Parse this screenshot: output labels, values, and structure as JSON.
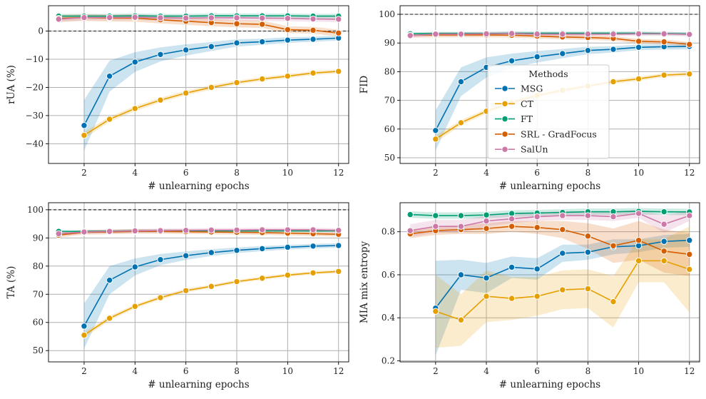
{
  "colors": {
    "MSG": "#0072b2",
    "CT": "#e69f00",
    "FT": "#009e73",
    "SRL - GradFocus": "#d55e00",
    "SalUn": "#cc79a7"
  },
  "legend": {
    "title": "Methods",
    "entries": [
      "MSG",
      "CT",
      "FT",
      "SRL - GradFocus",
      "SalUn"
    ],
    "placement": "center (top-right panel)"
  },
  "chart_data": [
    {
      "type": "line",
      "xlabel": "# unlearning epochs",
      "ylabel": "rUA (%)",
      "xlim": [
        0.6,
        12.4
      ],
      "ylim": [
        -47,
        9
      ],
      "xticks": [
        2,
        4,
        6,
        8,
        10,
        12
      ],
      "yticks": [
        -40,
        -30,
        -20,
        -10,
        0
      ],
      "reference_line": 0,
      "grid": true,
      "series": [
        {
          "name": "MSG",
          "x": [
            2,
            3,
            4,
            5,
            6,
            7,
            8,
            9,
            10,
            11,
            12
          ],
          "values": [
            -33.5,
            -16,
            -11,
            -8.3,
            -6.7,
            -5.5,
            -4.2,
            -3.8,
            -3.2,
            -2.9,
            -2.5
          ],
          "band": [
            9,
            5.5,
            3.5,
            2.5,
            2,
            1.6,
            1.3,
            1.1,
            1,
            0.9,
            0.9
          ]
        },
        {
          "name": "CT",
          "x": [
            2,
            3,
            4,
            5,
            6,
            7,
            8,
            9,
            10,
            11,
            12
          ],
          "values": [
            -37,
            -31.3,
            -27.5,
            -24.5,
            -22,
            -20,
            -18.3,
            -17,
            -16,
            -14.9,
            -14.3
          ],
          "band": [
            1.2,
            0.9,
            0.9,
            0.8,
            0.8,
            0.8,
            0.7,
            0.7,
            0.7,
            0.7,
            0.7
          ]
        },
        {
          "name": "FT",
          "x": [
            1,
            2,
            3,
            4,
            5,
            6,
            7,
            8,
            9,
            10,
            11,
            12
          ],
          "values": [
            5.3,
            5.3,
            5.3,
            5.4,
            5.3,
            5.3,
            5.4,
            5.4,
            5.4,
            5.4,
            5.3,
            5.3
          ],
          "band": [
            0.8,
            0.8,
            0.8,
            0.8,
            0.8,
            0.8,
            0.8,
            0.8,
            0.8,
            0.8,
            0.8,
            0.8
          ]
        },
        {
          "name": "SRL - GradFocus",
          "x": [
            1,
            2,
            3,
            4,
            5,
            6,
            7,
            8,
            9,
            10,
            11,
            12
          ],
          "values": [
            4.5,
            4.8,
            4.6,
            4.6,
            4,
            3.5,
            3,
            2.6,
            2.4,
            0.5,
            0.3,
            -0.7
          ],
          "band": [
            1.2,
            1.2,
            1.2,
            1.3,
            1.3,
            1.3,
            1.3,
            1.3,
            1.3,
            1.2,
            1.2,
            1.2
          ]
        },
        {
          "name": "SalUn",
          "x": [
            1,
            2,
            3,
            4,
            5,
            6,
            7,
            8,
            9,
            10,
            11,
            12
          ],
          "values": [
            4.2,
            4.8,
            4.8,
            4.9,
            4.7,
            4.6,
            4.7,
            4.7,
            4.6,
            4.5,
            4.3,
            4.2
          ],
          "band": [
            1,
            1,
            1,
            1,
            1,
            1,
            1,
            1,
            1,
            1,
            1,
            1
          ]
        }
      ]
    },
    {
      "type": "line",
      "xlabel": "# unlearning epochs",
      "ylabel": "FID",
      "xlim": [
        0.6,
        12.4
      ],
      "ylim": [
        48,
        103
      ],
      "xticks": [
        2,
        4,
        6,
        8,
        10,
        12
      ],
      "yticks": [
        50,
        60,
        70,
        80,
        90,
        100
      ],
      "reference_line": 100,
      "grid": true,
      "series": [
        {
          "name": "MSG",
          "x": [
            2,
            3,
            4,
            5,
            6,
            7,
            8,
            9,
            10,
            11,
            12
          ],
          "values": [
            59.5,
            76.5,
            81.5,
            83.8,
            85.2,
            86.3,
            87.4,
            87.8,
            88.5,
            88.7,
            88.8
          ],
          "band": [
            7,
            5,
            3.5,
            2.5,
            2,
            1.6,
            1.3,
            1.1,
            1,
            1,
            1
          ]
        },
        {
          "name": "CT",
          "x": [
            2,
            3,
            4,
            5,
            6,
            7,
            8,
            9,
            10,
            11,
            12
          ],
          "values": [
            56.5,
            62.2,
            66.2,
            69.2,
            71.7,
            73.5,
            75,
            76.5,
            77.5,
            78.8,
            79.2
          ],
          "band": [
            1.2,
            0.9,
            0.8,
            0.8,
            0.8,
            0.7,
            0.7,
            0.7,
            0.7,
            0.7,
            0.7
          ]
        },
        {
          "name": "FT",
          "x": [
            1,
            2,
            3,
            4,
            5,
            6,
            7,
            8,
            9,
            10,
            11,
            12
          ],
          "values": [
            93.2,
            93.3,
            93.3,
            93.3,
            93.4,
            93.4,
            93.4,
            93.4,
            93.4,
            93.4,
            93.3,
            93.2
          ],
          "band": [
            0.6,
            0.6,
            0.6,
            0.6,
            0.6,
            0.6,
            0.6,
            0.6,
            0.6,
            0.6,
            0.6,
            0.6
          ]
        },
        {
          "name": "SRL - GradFocus",
          "x": [
            1,
            2,
            3,
            4,
            5,
            6,
            7,
            8,
            9,
            10,
            11,
            12
          ],
          "values": [
            92.7,
            92.8,
            92.8,
            92.8,
            92.7,
            92.4,
            92.1,
            91.9,
            91.6,
            90.6,
            90.4,
            89.5
          ],
          "band": [
            0.8,
            0.8,
            0.8,
            0.8,
            0.8,
            0.8,
            0.8,
            0.8,
            0.8,
            0.8,
            0.8,
            0.8
          ]
        },
        {
          "name": "SalUn",
          "x": [
            1,
            2,
            3,
            4,
            5,
            6,
            7,
            8,
            9,
            10,
            11,
            12
          ],
          "values": [
            92.6,
            93.1,
            93.1,
            93.2,
            93.3,
            93.1,
            93.1,
            93.1,
            93.1,
            93.2,
            93.2,
            93
          ],
          "band": [
            0.7,
            0.7,
            0.7,
            0.7,
            0.7,
            0.7,
            0.7,
            0.7,
            0.7,
            0.7,
            0.7,
            0.7
          ]
        }
      ]
    },
    {
      "type": "line",
      "xlabel": "# unlearning epochs",
      "ylabel": "TA (%)",
      "xlim": [
        0.6,
        12.4
      ],
      "ylim": [
        46,
        102.5
      ],
      "xticks": [
        2,
        4,
        6,
        8,
        10,
        12
      ],
      "yticks": [
        50,
        60,
        70,
        80,
        90,
        100
      ],
      "reference_line": 100,
      "grid": true,
      "series": [
        {
          "name": "MSG",
          "x": [
            2,
            3,
            4,
            5,
            6,
            7,
            8,
            9,
            10,
            11,
            12
          ],
          "values": [
            58.7,
            75,
            79.7,
            82.3,
            83.7,
            84.8,
            85.6,
            86.2,
            86.7,
            87.1,
            87.3
          ],
          "band": [
            8,
            5,
            3,
            2,
            1.5,
            1.2,
            1,
            0.9,
            0.8,
            0.8,
            0.8
          ]
        },
        {
          "name": "CT",
          "x": [
            2,
            3,
            4,
            5,
            6,
            7,
            8,
            9,
            10,
            11,
            12
          ],
          "values": [
            55.5,
            61.5,
            65.7,
            68.8,
            71.3,
            72.8,
            74.5,
            75.7,
            76.8,
            77.6,
            78.1
          ],
          "band": [
            1,
            0.8,
            0.7,
            0.7,
            0.7,
            0.6,
            0.6,
            0.6,
            0.6,
            0.6,
            0.6
          ]
        },
        {
          "name": "FT",
          "x": [
            1,
            2,
            3,
            4,
            5,
            6,
            7,
            8,
            9,
            10,
            11,
            12
          ],
          "values": [
            92.3,
            92.3,
            92.4,
            92.5,
            92.5,
            92.5,
            92.5,
            92.5,
            92.5,
            92.5,
            92.5,
            92.5
          ],
          "band": [
            0.5,
            0.5,
            0.5,
            0.5,
            0.5,
            0.5,
            0.5,
            0.5,
            0.5,
            0.5,
            0.5,
            0.5
          ]
        },
        {
          "name": "SRL - GradFocus",
          "x": [
            1,
            2,
            3,
            4,
            5,
            6,
            7,
            8,
            9,
            10,
            11,
            12
          ],
          "values": [
            91,
            92,
            92.1,
            92.3,
            92.3,
            92.2,
            92.1,
            92,
            91.9,
            91.7,
            91.5,
            91.3
          ],
          "band": [
            0.8,
            0.8,
            0.8,
            0.8,
            0.8,
            0.8,
            0.8,
            0.8,
            0.8,
            0.8,
            0.8,
            0.8
          ]
        },
        {
          "name": "SalUn",
          "x": [
            1,
            2,
            3,
            4,
            5,
            6,
            7,
            8,
            9,
            10,
            11,
            12
          ],
          "values": [
            91.5,
            92.1,
            92.3,
            92.5,
            92.6,
            92.7,
            92.8,
            92.8,
            92.9,
            92.9,
            92.9,
            92.7
          ],
          "band": [
            0.7,
            0.7,
            0.7,
            0.7,
            0.7,
            0.7,
            0.7,
            0.7,
            0.7,
            0.7,
            0.7,
            0.7
          ]
        }
      ]
    },
    {
      "type": "line",
      "xlabel": "# unlearning epochs",
      "ylabel": "MIA mix entropy",
      "xlim": [
        0.6,
        12.4
      ],
      "ylim": [
        0.195,
        0.935
      ],
      "xticks": [
        2,
        4,
        6,
        8,
        10,
        12
      ],
      "yticks": [
        0.2,
        0.4,
        0.6,
        0.8
      ],
      "grid": true,
      "series": [
        {
          "name": "MSG",
          "x": [
            2,
            3,
            4,
            5,
            6,
            7,
            8,
            9,
            10,
            11,
            12
          ],
          "values": [
            0.445,
            0.6,
            0.585,
            0.635,
            0.627,
            0.7,
            0.705,
            0.73,
            0.735,
            0.755,
            0.76
          ],
          "band": [
            0.22,
            0.07,
            0.07,
            0.05,
            0.05,
            0.04,
            0.035,
            0.035,
            0.03,
            0.03,
            0.03
          ]
        },
        {
          "name": "CT",
          "x": [
            2,
            3,
            4,
            5,
            6,
            7,
            8,
            9,
            10,
            11,
            12
          ],
          "values": [
            0.43,
            0.39,
            0.5,
            0.49,
            0.5,
            0.53,
            0.535,
            0.475,
            0.665,
            0.665,
            0.625
          ],
          "band": [
            0.17,
            0.12,
            0.12,
            0.1,
            0.09,
            0.09,
            0.09,
            0.12,
            0.1,
            0.1,
            0.2
          ]
        },
        {
          "name": "FT",
          "x": [
            1,
            2,
            3,
            4,
            5,
            6,
            7,
            8,
            9,
            10,
            11,
            12
          ],
          "values": [
            0.88,
            0.875,
            0.875,
            0.878,
            0.885,
            0.887,
            0.89,
            0.893,
            0.893,
            0.895,
            0.893,
            0.892
          ],
          "band": [
            0.015,
            0.015,
            0.015,
            0.015,
            0.015,
            0.015,
            0.015,
            0.015,
            0.015,
            0.015,
            0.015,
            0.015
          ]
        },
        {
          "name": "SRL - GradFocus",
          "x": [
            1,
            2,
            3,
            4,
            5,
            6,
            7,
            8,
            9,
            10,
            11,
            12
          ],
          "values": [
            0.79,
            0.805,
            0.81,
            0.815,
            0.825,
            0.82,
            0.81,
            0.78,
            0.735,
            0.76,
            0.71,
            0.695
          ],
          "band": [
            0.02,
            0.02,
            0.02,
            0.025,
            0.025,
            0.03,
            0.04,
            0.06,
            0.08,
            0.09,
            0.1,
            0.1
          ]
        },
        {
          "name": "SalUn",
          "x": [
            1,
            2,
            3,
            4,
            5,
            6,
            7,
            8,
            9,
            10,
            11,
            12
          ],
          "values": [
            0.805,
            0.825,
            0.825,
            0.85,
            0.86,
            0.87,
            0.875,
            0.875,
            0.87,
            0.885,
            0.835,
            0.875
          ],
          "band": [
            0.03,
            0.03,
            0.03,
            0.025,
            0.02,
            0.02,
            0.02,
            0.02,
            0.02,
            0.02,
            0.04,
            0.025
          ]
        }
      ]
    }
  ]
}
